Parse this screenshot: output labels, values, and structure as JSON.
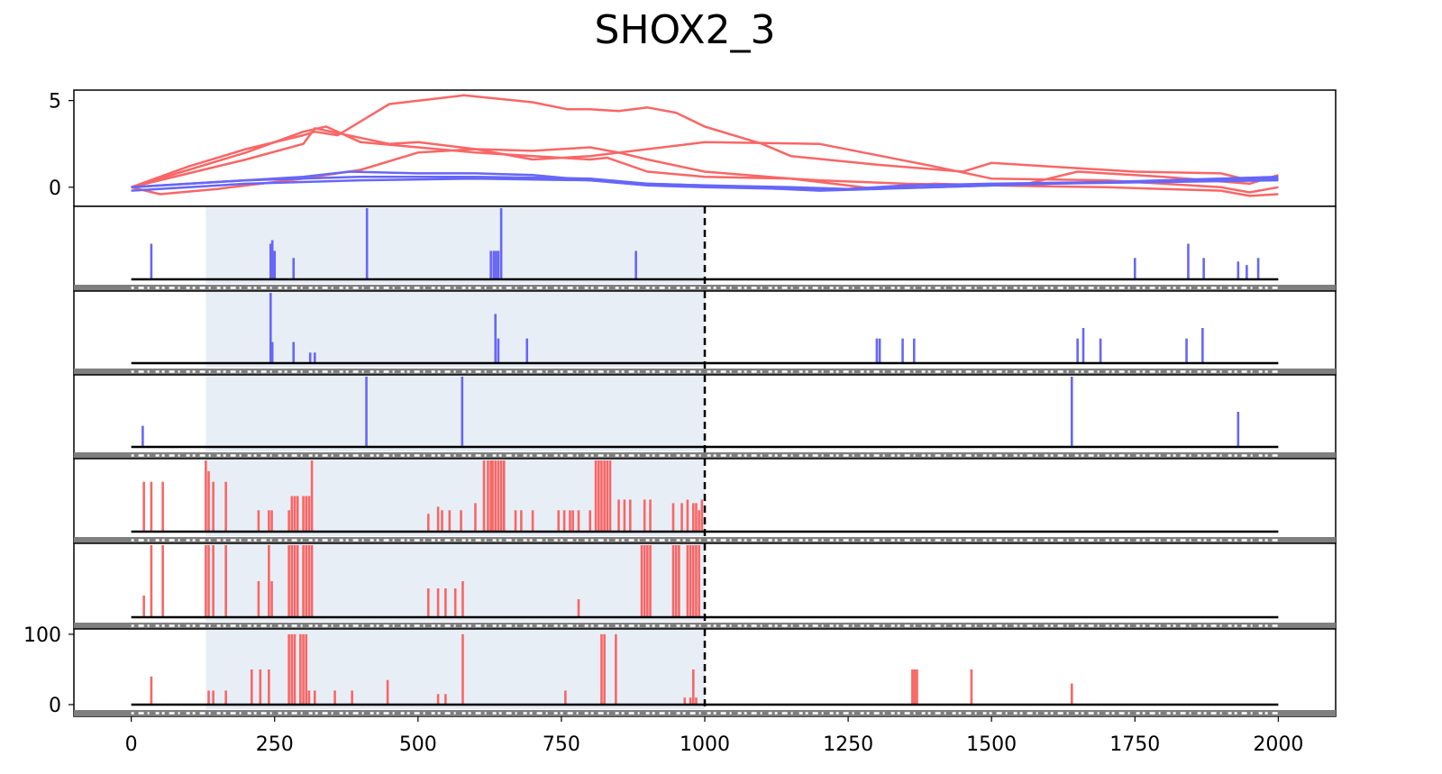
{
  "title": "SHOX2_3",
  "colors": {
    "positive": "#f96666",
    "negative": "#6666f9",
    "highlight": "#e8eef5",
    "threshold": "#000000",
    "track": "#7f7f7f"
  },
  "chart_data": [
    {
      "type": "line",
      "panel": "cumulative",
      "xlim": [
        -100,
        2100
      ],
      "ylim": [
        -1,
        5.5
      ],
      "xticks": [
        0,
        250,
        500,
        750,
        1000,
        1250,
        1500,
        1750,
        2000
      ],
      "yticks": [
        0,
        5
      ],
      "series": [
        {
          "color": "positive",
          "x": [
            0,
            100,
            200,
            300,
            320,
            360,
            450,
            580,
            700,
            760,
            800,
            850,
            900,
            950,
            1000,
            1100,
            1150,
            1300,
            1450,
            1500,
            1600,
            1750,
            1900,
            1950,
            2000
          ],
          "y": [
            0,
            1.2,
            2.2,
            3.0,
            3.2,
            3.0,
            4.8,
            5.3,
            4.9,
            4.5,
            4.5,
            4.4,
            4.6,
            4.3,
            3.5,
            2.5,
            1.8,
            1.3,
            0.9,
            1.4,
            1.2,
            0.9,
            0.8,
            0.4,
            0.5
          ]
        },
        {
          "color": "positive",
          "x": [
            0,
            100,
            200,
            300,
            320,
            450,
            500,
            600,
            700,
            800,
            1000,
            1200,
            1400,
            1500,
            1700,
            1900,
            1950,
            2000
          ],
          "y": [
            0,
            0.8,
            1.6,
            2.5,
            3.4,
            2.5,
            2.6,
            2.2,
            1.6,
            1.8,
            2.6,
            2.5,
            1.2,
            0.5,
            0.4,
            0.0,
            -0.3,
            0.0
          ]
        },
        {
          "color": "positive",
          "x": [
            0,
            100,
            200,
            300,
            340,
            400,
            500,
            600,
            700,
            800,
            830,
            900,
            1000,
            1150,
            1200,
            1350,
            1550,
            1650,
            1800,
            1950,
            2000
          ],
          "y": [
            0,
            1.0,
            2.0,
            3.2,
            3.5,
            2.6,
            2.3,
            2.0,
            1.8,
            1.6,
            1.7,
            0.9,
            0.6,
            0.5,
            0.4,
            0.2,
            0.1,
            0.9,
            0.6,
            0.2,
            0.7
          ]
        },
        {
          "color": "positive",
          "x": [
            0,
            50,
            150,
            300,
            400,
            500,
            600,
            700,
            800,
            850,
            900,
            1000,
            1150,
            1200,
            1300,
            1400,
            1500,
            1700,
            1900,
            1950,
            2000
          ],
          "y": [
            0,
            -0.4,
            -0.1,
            0.5,
            1.0,
            2.0,
            2.2,
            2.1,
            2.3,
            2.0,
            1.6,
            0.9,
            0.5,
            0.3,
            -0.1,
            0.2,
            0.1,
            0.0,
            -0.2,
            -0.5,
            -0.4
          ]
        },
        {
          "color": "negative",
          "x": [
            0,
            150,
            300,
            380,
            500,
            600,
            700,
            800,
            900,
            1000,
            1150,
            1250,
            1400,
            1600,
            1800,
            2000
          ],
          "y": [
            0,
            0.3,
            0.6,
            0.9,
            0.8,
            0.8,
            0.7,
            0.4,
            0.1,
            0.0,
            -0.1,
            -0.1,
            0.0,
            0.2,
            0.4,
            0.6
          ]
        },
        {
          "color": "negative",
          "x": [
            0,
            200,
            400,
            600,
            800,
            900,
            1000,
            1150,
            1250,
            1350,
            1500,
            1700,
            1900,
            2000
          ],
          "y": [
            0,
            0.4,
            0.6,
            0.6,
            0.5,
            0.2,
            0.1,
            0.0,
            -0.1,
            0.1,
            0.2,
            0.3,
            0.4,
            0.5
          ]
        },
        {
          "color": "negative",
          "x": [
            0,
            200,
            400,
            600,
            800,
            900,
            1000,
            1200,
            1300,
            1400,
            1600,
            1800,
            2000
          ],
          "y": [
            -0.2,
            0.2,
            0.4,
            0.5,
            0.4,
            0.2,
            0.1,
            -0.2,
            -0.1,
            0.0,
            0.2,
            0.3,
            0.4
          ]
        }
      ]
    },
    {
      "type": "bar",
      "panel": "track-1",
      "color": "negative",
      "xlim": [
        -100,
        2100
      ],
      "ylim": [
        0,
        100
      ],
      "highlight_range": [
        130,
        1000
      ],
      "threshold_x": 1000,
      "x": [
        35,
        243,
        246,
        250,
        283,
        411,
        627,
        632,
        636,
        640,
        645,
        880,
        1750,
        1843,
        1870,
        1930,
        1945,
        1965
      ],
      "values": [
        50,
        50,
        55,
        40,
        30,
        100,
        40,
        40,
        40,
        40,
        100,
        40,
        30,
        50,
        30,
        25,
        20,
        30
      ]
    },
    {
      "type": "bar",
      "panel": "track-2",
      "color": "negative",
      "xlim": [
        -100,
        2100
      ],
      "ylim": [
        0,
        100
      ],
      "highlight_range": [
        130,
        1000
      ],
      "threshold_x": 1000,
      "x": [
        243,
        246,
        283,
        312,
        320,
        635,
        640,
        690,
        1300,
        1305,
        1345,
        1365,
        1650,
        1660,
        1690,
        1840,
        1868
      ],
      "values": [
        100,
        30,
        30,
        15,
        15,
        70,
        35,
        35,
        35,
        35,
        35,
        35,
        35,
        50,
        35,
        35,
        50
      ]
    },
    {
      "type": "bar",
      "panel": "track-3",
      "color": "negative",
      "xlim": [
        -100,
        2100
      ],
      "ylim": [
        0,
        100
      ],
      "highlight_range": [
        130,
        1000
      ],
      "threshold_x": 1000,
      "x": [
        20,
        410,
        577,
        1640,
        1930
      ],
      "values": [
        30,
        100,
        100,
        100,
        50
      ]
    },
    {
      "type": "bar",
      "panel": "track-4",
      "color": "positive",
      "xlim": [
        -100,
        2100
      ],
      "ylim": [
        0,
        100
      ],
      "highlight_range": [
        130,
        1000
      ],
      "threshold_x": 1000,
      "x": [
        22,
        35,
        55,
        130,
        135,
        143,
        165,
        222,
        240,
        245,
        275,
        280,
        285,
        290,
        300,
        305,
        310,
        315,
        518,
        535,
        542,
        555,
        575,
        600,
        615,
        622,
        627,
        630,
        635,
        640,
        645,
        650,
        670,
        680,
        700,
        745,
        755,
        765,
        770,
        780,
        800,
        810,
        815,
        820,
        825,
        830,
        835,
        850,
        860,
        870,
        895,
        905,
        945,
        960,
        970,
        980,
        985,
        990,
        995
      ],
      "values": [
        70,
        70,
        70,
        100,
        85,
        70,
        70,
        30,
        30,
        30,
        30,
        50,
        50,
        50,
        50,
        50,
        50,
        100,
        25,
        35,
        30,
        30,
        30,
        40,
        100,
        100,
        100,
        100,
        100,
        100,
        100,
        100,
        30,
        30,
        30,
        30,
        30,
        30,
        30,
        30,
        30,
        100,
        100,
        100,
        100,
        100,
        100,
        45,
        45,
        45,
        45,
        45,
        40,
        40,
        45,
        40,
        40,
        30,
        45
      ]
    },
    {
      "type": "bar",
      "panel": "track-5",
      "color": "positive",
      "xlim": [
        -100,
        2100
      ],
      "ylim": [
        0,
        100
      ],
      "highlight_range": [
        130,
        1000
      ],
      "threshold_x": 1000,
      "x": [
        22,
        35,
        55,
        130,
        135,
        143,
        165,
        222,
        240,
        245,
        275,
        280,
        285,
        290,
        300,
        305,
        310,
        315,
        518,
        535,
        548,
        565,
        578,
        780,
        890,
        895,
        900,
        905,
        945,
        950,
        955,
        970,
        975,
        980,
        985,
        990
      ],
      "values": [
        30,
        100,
        100,
        100,
        100,
        100,
        100,
        50,
        100,
        50,
        100,
        100,
        100,
        100,
        100,
        100,
        100,
        100,
        40,
        40,
        40,
        40,
        50,
        25,
        100,
        100,
        100,
        100,
        100,
        100,
        100,
        100,
        100,
        100,
        100,
        100
      ]
    },
    {
      "type": "bar",
      "panel": "track-6",
      "color": "positive",
      "xlim": [
        -100,
        2100
      ],
      "ylim": [
        -5,
        105
      ],
      "yticks": [
        0,
        100
      ],
      "highlight_range": [
        130,
        1000
      ],
      "threshold_x": 1000,
      "x": [
        35,
        135,
        143,
        165,
        210,
        225,
        240,
        275,
        280,
        285,
        295,
        300,
        305,
        310,
        320,
        355,
        385,
        447,
        535,
        548,
        578,
        757,
        820,
        825,
        845,
        965,
        975,
        980,
        985,
        1362,
        1366,
        1370,
        1465,
        1640
      ],
      "values": [
        40,
        20,
        20,
        20,
        50,
        50,
        50,
        100,
        100,
        100,
        100,
        100,
        100,
        20,
        20,
        20,
        20,
        35,
        15,
        15,
        100,
        20,
        100,
        100,
        100,
        10,
        10,
        50,
        10,
        50,
        50,
        50,
        50,
        30
      ]
    }
  ]
}
